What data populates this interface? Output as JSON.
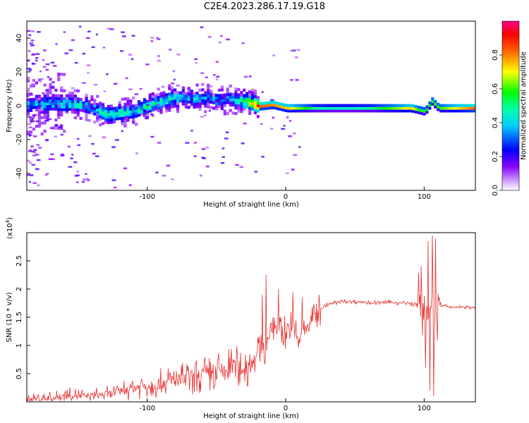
{
  "chart_data": [
    {
      "type": "heatmap",
      "title": "C2E4.2023.286.17.19.G18",
      "xlabel": "Height of straight line (km)",
      "ylabel": "Frequency (Hz)",
      "xlim": [
        -187,
        137
      ],
      "ylim": [
        -50,
        50
      ],
      "xticks": [
        -100,
        0,
        100
      ],
      "yticks": [
        -40,
        -20,
        0,
        20,
        40
      ],
      "colorbar": {
        "label": "Normalized spectral amplitude",
        "range": [
          0,
          1
        ],
        "ticks": [
          0.0,
          0.2,
          0.4,
          0.6,
          0.8
        ],
        "colormap": [
          "#ffffff",
          "#8800ff",
          "#0000ff",
          "#00ffff",
          "#00ff00",
          "#ffff00",
          "#ff0000",
          "#ff0088"
        ]
      },
      "ridge": {
        "x": [
          -187,
          -170,
          -150,
          -140,
          -130,
          -120,
          -110,
          -100,
          -90,
          -80,
          -70,
          -60,
          -50,
          -40,
          -30,
          -20,
          -10,
          0,
          20,
          40,
          60,
          80,
          90,
          95,
          100,
          105,
          110,
          120,
          137
        ],
        "y": [
          0,
          1,
          0,
          -2,
          -6,
          -5,
          -4,
          -1,
          2,
          4,
          3,
          4,
          2,
          3,
          2,
          -1,
          0,
          -2,
          -2,
          -2,
          -2,
          -2,
          -2,
          -3,
          -4,
          2,
          -2,
          -2,
          -2
        ],
        "amp": [
          0.35,
          0.4,
          0.4,
          0.3,
          0.45,
          0.45,
          0.4,
          0.45,
          0.45,
          0.4,
          0.35,
          0.35,
          0.3,
          0.3,
          0.55,
          0.85,
          0.8,
          0.75,
          0.5,
          0.45,
          0.5,
          0.65,
          0.75,
          0.6,
          0.55,
          0.6,
          0.6,
          0.7,
          0.85
        ]
      }
    },
    {
      "type": "line",
      "xlabel": "Height of straight line (km)",
      "ylabel": "SNR (10 * v/v)",
      "yscale_label": "(x10",
      "yscale_exp": "4",
      "yscale_close": ")",
      "xlim": [
        -187,
        137
      ],
      "ylim": [
        0,
        3
      ],
      "xticks": [
        -100,
        0,
        100
      ],
      "yticks": [
        0.5,
        1,
        1.5,
        2,
        2.5
      ],
      "color": "#e83030",
      "series": [
        {
          "x": [
            -187,
            -175,
            -165,
            -155,
            -145,
            -135,
            -125,
            -115,
            -105,
            -95,
            -85,
            -75,
            -65,
            -55,
            -45,
            -35,
            -28,
            -25,
            -22,
            -18,
            -15,
            -12,
            -10,
            -5,
            0,
            5,
            10,
            15,
            20,
            25,
            30,
            40,
            50,
            60,
            70,
            80,
            90,
            95,
            100,
            103,
            105,
            107,
            109,
            110,
            112,
            115,
            120,
            130,
            137
          ],
          "y": [
            0.05,
            0.05,
            0.08,
            0.12,
            0.1,
            0.12,
            0.15,
            0.22,
            0.28,
            0.32,
            0.35,
            0.4,
            0.45,
            0.48,
            0.55,
            0.6,
            0.6,
            0.7,
            0.8,
            0.85,
            0.9,
            1.2,
            1.3,
            1.4,
            1.2,
            1.3,
            1.1,
            1.3,
            1.55,
            1.65,
            1.72,
            1.78,
            1.78,
            1.76,
            1.76,
            1.76,
            1.74,
            1.72,
            1.7,
            1.4,
            1.8,
            1.5,
            1.6,
            1.72,
            1.7,
            1.7,
            1.68,
            1.68,
            1.66
          ],
          "spikes": [
            {
              "x": -14,
              "y": 2.25
            },
            {
              "x": -17,
              "y": 1.9
            },
            {
              "x": -5,
              "y": 2.0
            },
            {
              "x": 5,
              "y": 1.95
            },
            {
              "x": 12,
              "y": 1.85
            },
            {
              "x": 98,
              "y": 2.4
            },
            {
              "x": 103,
              "y": 2.85
            },
            {
              "x": 106,
              "y": 2.95
            },
            {
              "x": 108,
              "y": 2.9
            },
            {
              "x": 104,
              "y": 0.2
            },
            {
              "x": 107,
              "y": 0.1
            },
            {
              "x": 101,
              "y": 0.6
            }
          ]
        }
      ]
    }
  ]
}
